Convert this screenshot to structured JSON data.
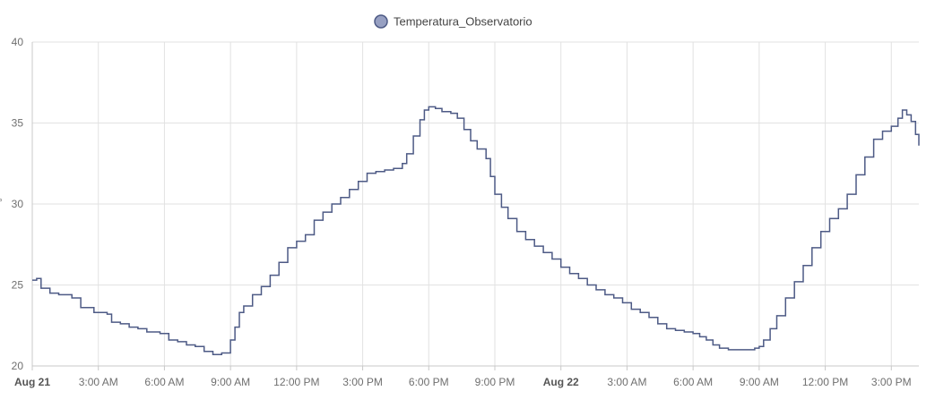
{
  "chart_data": {
    "type": "line",
    "step": true,
    "title": "",
    "xlabel": "",
    "ylabel": "°",
    "ylim": [
      20,
      40
    ],
    "y_ticks": [
      20,
      25,
      30,
      35,
      40
    ],
    "grid": true,
    "legend_position": "top-center",
    "x_range_hours": [
      0,
      40.25
    ],
    "x_ticks": [
      {
        "h": 0,
        "label": "Aug 21",
        "bold": true
      },
      {
        "h": 3,
        "label": "3:00 AM"
      },
      {
        "h": 6,
        "label": "6:00 AM"
      },
      {
        "h": 9,
        "label": "9:00 AM"
      },
      {
        "h": 12,
        "label": "12:00 PM"
      },
      {
        "h": 15,
        "label": "3:00 PM"
      },
      {
        "h": 18,
        "label": "6:00 PM"
      },
      {
        "h": 21,
        "label": "9:00 PM"
      },
      {
        "h": 24,
        "label": "Aug 22",
        "bold": true
      },
      {
        "h": 27,
        "label": "3:00 AM"
      },
      {
        "h": 30,
        "label": "6:00 AM"
      },
      {
        "h": 33,
        "label": "9:00 AM"
      },
      {
        "h": 36,
        "label": "12:00 PM"
      },
      {
        "h": 39,
        "label": "3:00 PM"
      }
    ],
    "series": [
      {
        "name": "Temperatura_Observatorio",
        "color": "#4d5a85",
        "marker_fill": "#97a0c2",
        "points": [
          [
            0,
            25.3
          ],
          [
            0.2,
            25.4
          ],
          [
            0.4,
            24.8
          ],
          [
            0.8,
            24.5
          ],
          [
            1.2,
            24.4
          ],
          [
            1.8,
            24.2
          ],
          [
            2.2,
            23.6
          ],
          [
            2.8,
            23.3
          ],
          [
            3.4,
            23.2
          ],
          [
            3.6,
            22.7
          ],
          [
            4.0,
            22.6
          ],
          [
            4.4,
            22.4
          ],
          [
            4.8,
            22.3
          ],
          [
            5.2,
            22.1
          ],
          [
            5.8,
            22.0
          ],
          [
            6.2,
            21.6
          ],
          [
            6.6,
            21.5
          ],
          [
            7.0,
            21.3
          ],
          [
            7.4,
            21.2
          ],
          [
            7.8,
            20.9
          ],
          [
            8.2,
            20.7
          ],
          [
            8.6,
            20.8
          ],
          [
            8.8,
            20.8
          ],
          [
            9.0,
            21.6
          ],
          [
            9.2,
            22.4
          ],
          [
            9.4,
            23.3
          ],
          [
            9.6,
            23.7
          ],
          [
            10.0,
            24.4
          ],
          [
            10.4,
            24.9
          ],
          [
            10.8,
            25.6
          ],
          [
            11.2,
            26.4
          ],
          [
            11.6,
            27.3
          ],
          [
            12.0,
            27.7
          ],
          [
            12.4,
            28.1
          ],
          [
            12.8,
            29.0
          ],
          [
            13.2,
            29.5
          ],
          [
            13.6,
            30.0
          ],
          [
            14.0,
            30.4
          ],
          [
            14.4,
            30.9
          ],
          [
            14.8,
            31.4
          ],
          [
            15.2,
            31.9
          ],
          [
            15.6,
            32.0
          ],
          [
            16.0,
            32.1
          ],
          [
            16.4,
            32.2
          ],
          [
            16.8,
            32.5
          ],
          [
            17.0,
            33.1
          ],
          [
            17.3,
            34.2
          ],
          [
            17.6,
            35.2
          ],
          [
            17.8,
            35.8
          ],
          [
            18.0,
            36.0
          ],
          [
            18.3,
            35.9
          ],
          [
            18.6,
            35.7
          ],
          [
            19.0,
            35.6
          ],
          [
            19.3,
            35.3
          ],
          [
            19.6,
            34.6
          ],
          [
            19.9,
            33.9
          ],
          [
            20.2,
            33.4
          ],
          [
            20.4,
            33.4
          ],
          [
            20.6,
            32.8
          ],
          [
            20.8,
            31.7
          ],
          [
            21.0,
            30.6
          ],
          [
            21.3,
            29.8
          ],
          [
            21.6,
            29.1
          ],
          [
            22.0,
            28.3
          ],
          [
            22.4,
            27.8
          ],
          [
            22.8,
            27.4
          ],
          [
            23.2,
            27.0
          ],
          [
            23.6,
            26.6
          ],
          [
            24.0,
            26.1
          ],
          [
            24.4,
            25.7
          ],
          [
            24.8,
            25.4
          ],
          [
            25.2,
            25.0
          ],
          [
            25.6,
            24.7
          ],
          [
            26.0,
            24.4
          ],
          [
            26.4,
            24.2
          ],
          [
            26.8,
            23.9
          ],
          [
            27.2,
            23.5
          ],
          [
            27.6,
            23.3
          ],
          [
            28.0,
            23.0
          ],
          [
            28.4,
            22.6
          ],
          [
            28.8,
            22.3
          ],
          [
            29.2,
            22.2
          ],
          [
            29.6,
            22.1
          ],
          [
            30.0,
            22.0
          ],
          [
            30.3,
            21.8
          ],
          [
            30.6,
            21.6
          ],
          [
            30.9,
            21.3
          ],
          [
            31.2,
            21.1
          ],
          [
            31.6,
            21.0
          ],
          [
            32.0,
            21.0
          ],
          [
            32.4,
            21.0
          ],
          [
            32.8,
            21.1
          ],
          [
            33.0,
            21.2
          ],
          [
            33.2,
            21.6
          ],
          [
            33.5,
            22.3
          ],
          [
            33.8,
            23.1
          ],
          [
            34.2,
            24.2
          ],
          [
            34.6,
            25.2
          ],
          [
            35.0,
            26.2
          ],
          [
            35.4,
            27.3
          ],
          [
            35.8,
            28.3
          ],
          [
            36.2,
            29.1
          ],
          [
            36.6,
            29.7
          ],
          [
            37.0,
            30.6
          ],
          [
            37.4,
            31.8
          ],
          [
            37.8,
            32.9
          ],
          [
            38.2,
            34.0
          ],
          [
            38.6,
            34.5
          ],
          [
            39.0,
            34.8
          ],
          [
            39.3,
            35.3
          ],
          [
            39.5,
            35.8
          ],
          [
            39.7,
            35.5
          ],
          [
            39.9,
            35.1
          ],
          [
            40.1,
            34.3
          ],
          [
            40.25,
            33.6
          ]
        ]
      }
    ]
  }
}
